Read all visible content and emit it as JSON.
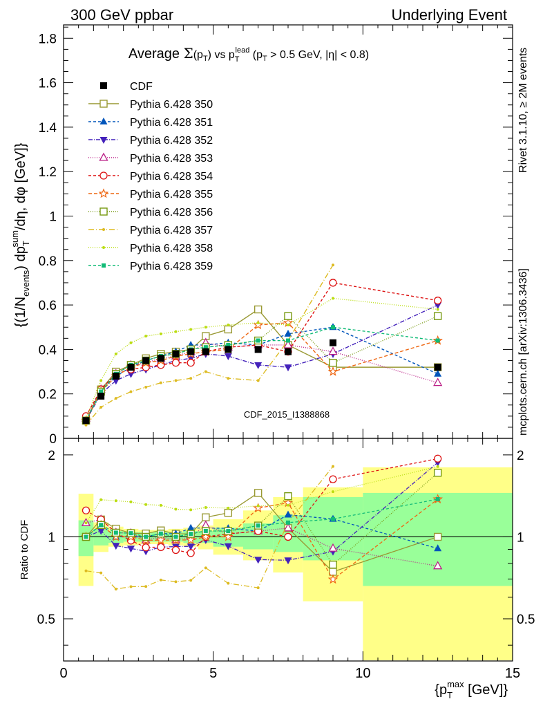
{
  "header": {
    "left": "300 GeV ppbar",
    "right": "Underlying Event"
  },
  "side": {
    "rivet": "Rivet 3.1.10, ≥ 2M events",
    "mcplots": "mcplots.cern.ch [arXiv:1306.3436]"
  },
  "chart_data": {
    "type": "line",
    "title": "Average Σ(p_T) vs p_T^lead (p_T > 0.5 GeV, |η| < 0.8)",
    "watermark": "CDF_2015_I1388868",
    "xlabel": "{p_T^max [GeV]}",
    "ylabel": "{(1/N_events) dp_T^sum/dη, dφ [GeV]}",
    "ratio_ylabel": "Ratio to CDF",
    "xlim": [
      0,
      15
    ],
    "ylim": [
      0,
      1.86
    ],
    "ratio_ylim": [
      0.35,
      2.3
    ],
    "x_ticks": [
      "0",
      "5",
      "10",
      "15"
    ],
    "y_ticks": [
      "0",
      "0.2",
      "0.4",
      "0.6",
      "0.8",
      "1",
      "1.2",
      "1.4",
      "1.6",
      "1.8"
    ],
    "ratio_ticks": [
      "0.5",
      "1",
      "2"
    ],
    "legend_position": "top-left",
    "x": [
      0.75,
      1.25,
      1.75,
      2.25,
      2.75,
      3.25,
      3.75,
      4.25,
      4.75,
      5.5,
      6.5,
      7.5,
      9,
      12.5
    ],
    "data": {
      "name": "CDF",
      "y": [
        0.08,
        0.19,
        0.28,
        0.32,
        0.35,
        0.36,
        0.38,
        0.39,
        0.39,
        0.4,
        0.4,
        0.39,
        0.43,
        0.32
      ],
      "band_x": [
        0.5,
        1.0,
        1.5,
        2.0,
        2.5,
        3.0,
        3.5,
        4.0,
        4.5,
        5.0,
        6.0,
        7.0,
        8.0,
        10.0,
        15.0
      ],
      "stat_lo": [
        0.85,
        0.93,
        0.95,
        0.96,
        0.96,
        0.96,
        0.96,
        0.95,
        0.95,
        0.92,
        0.9,
        0.88,
        0.82,
        0.66
      ],
      "stat_hi": [
        1.15,
        1.07,
        1.05,
        1.04,
        1.04,
        1.04,
        1.04,
        1.05,
        1.05,
        1.08,
        1.12,
        1.2,
        1.4,
        1.45
      ],
      "tot_lo": [
        0.66,
        0.88,
        0.92,
        0.93,
        0.94,
        0.94,
        0.93,
        0.92,
        0.9,
        0.86,
        0.82,
        0.74,
        0.58,
        0.3
      ],
      "tot_hi": [
        1.44,
        1.13,
        1.09,
        1.07,
        1.06,
        1.06,
        1.07,
        1.08,
        1.1,
        1.16,
        1.25,
        1.4,
        1.52,
        1.8
      ]
    },
    "series": [
      {
        "name": "Pythia 6.428 350",
        "color": "#999933",
        "marker": "square-open",
        "dash": "",
        "y": [
          0.08,
          0.22,
          0.3,
          0.33,
          0.36,
          0.38,
          0.39,
          0.4,
          0.46,
          0.49,
          0.58,
          0.42,
          0.32,
          0.32
        ]
      },
      {
        "name": "Pythia 6.428 351",
        "color": "#0055bb",
        "marker": "triangle-up",
        "dash": "4,3",
        "y": [
          0.08,
          0.21,
          0.28,
          0.32,
          0.35,
          0.37,
          0.39,
          0.42,
          0.42,
          0.43,
          0.42,
          0.47,
          0.5,
          0.29
        ]
      },
      {
        "name": "Pythia 6.428 352",
        "color": "#4422bb",
        "marker": "triangle-down",
        "dash": "6,2,1,2",
        "y": [
          0.08,
          0.2,
          0.26,
          0.29,
          0.31,
          0.33,
          0.35,
          0.36,
          0.38,
          0.37,
          0.33,
          0.32,
          0.38,
          0.6
        ]
      },
      {
        "name": "Pythia 6.428 353",
        "color": "#bb2288",
        "marker": "triangle-up-open",
        "dash": "1,2",
        "y": [
          0.09,
          0.22,
          0.29,
          0.33,
          0.34,
          0.36,
          0.37,
          0.39,
          0.43,
          0.41,
          0.42,
          0.42,
          0.39,
          0.25
        ]
      },
      {
        "name": "Pythia 6.428 354",
        "color": "#dd1111",
        "marker": "circle-open",
        "dash": "4,3",
        "y": [
          0.1,
          0.22,
          0.29,
          0.31,
          0.32,
          0.33,
          0.34,
          0.34,
          0.39,
          0.41,
          0.42,
          0.39,
          0.7,
          0.62
        ]
      },
      {
        "name": "Pythia 6.428 355",
        "color": "#ee6611",
        "marker": "star-open",
        "dash": "5,3",
        "y": [
          0.08,
          0.21,
          0.28,
          0.32,
          0.34,
          0.35,
          0.37,
          0.38,
          0.39,
          0.4,
          0.51,
          0.52,
          0.3,
          0.44
        ]
      },
      {
        "name": "Pythia 6.428 356",
        "color": "#779911",
        "marker": "square-open",
        "dash": "1,2",
        "y": [
          0.08,
          0.21,
          0.29,
          0.33,
          0.35,
          0.37,
          0.38,
          0.4,
          0.41,
          0.42,
          0.44,
          0.55,
          0.34,
          0.55
        ]
      },
      {
        "name": "Pythia 6.428 357",
        "color": "#ddbb22",
        "marker": "dot",
        "dash": "8,3,1,3",
        "y": [
          0.06,
          0.14,
          0.18,
          0.21,
          0.23,
          0.25,
          0.26,
          0.27,
          0.3,
          0.27,
          0.26,
          0.44,
          0.78,
          null
        ]
      },
      {
        "name": "Pythia 6.428 358",
        "color": "#bbdd11",
        "marker": "dot",
        "dash": "1,2",
        "y": [
          0.09,
          0.26,
          0.38,
          0.43,
          0.46,
          0.47,
          0.48,
          0.49,
          0.5,
          0.51,
          0.52,
          0.51,
          0.63,
          0.58
        ]
      },
      {
        "name": "Pythia 6.428 359",
        "color": "#11bb77",
        "marker": "square",
        "dash": "4,3",
        "y": [
          0.08,
          0.21,
          0.29,
          0.33,
          0.35,
          0.37,
          0.38,
          0.4,
          0.41,
          0.42,
          0.44,
          0.44,
          0.5,
          0.44
        ]
      }
    ]
  }
}
